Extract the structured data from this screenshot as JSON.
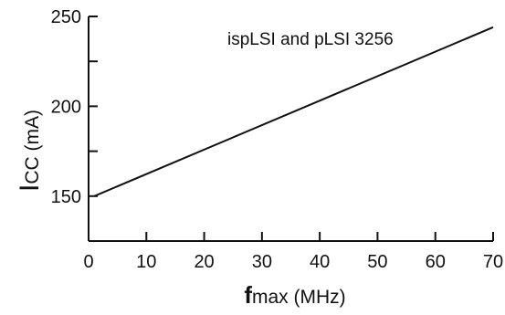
{
  "chart_data": {
    "type": "line",
    "title": "",
    "annotation": "ispLSI and pLSI 3256",
    "xlabel": {
      "main": "f",
      "sub": "max",
      "unit": " (MHz)"
    },
    "ylabel": {
      "main": "I",
      "sub": "CC",
      "unit": " (mA)"
    },
    "xlim": [
      0,
      70
    ],
    "ylim": [
      125,
      250
    ],
    "x_ticks": [
      0,
      10,
      20,
      30,
      40,
      50,
      60,
      70
    ],
    "y_ticks": [
      150,
      200,
      250
    ],
    "y_minor_ticks": [
      175,
      225
    ],
    "grid": false,
    "series": [
      {
        "x": [
          1,
          70
        ],
        "y": [
          150,
          244
        ]
      }
    ]
  }
}
